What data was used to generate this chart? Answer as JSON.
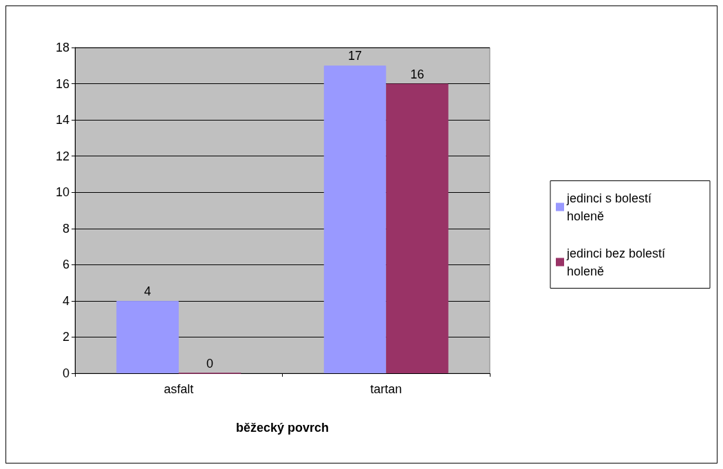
{
  "chart_data": {
    "type": "bar",
    "xlabel": "běžecký povrch",
    "categories": [
      "asfalt",
      "tartan"
    ],
    "series": [
      {
        "name": "jedinci s bolestí holeně",
        "color": "#9999ff",
        "values": [
          4,
          17
        ]
      },
      {
        "name": "jedinci bez bolestí holeně",
        "color": "#993366",
        "values": [
          0,
          16
        ]
      }
    ],
    "ylim": [
      0,
      18
    ],
    "yticks": [
      0,
      2,
      4,
      6,
      8,
      10,
      12,
      14,
      16,
      18
    ],
    "grid": "y",
    "legend": "right",
    "data_labels": true
  }
}
